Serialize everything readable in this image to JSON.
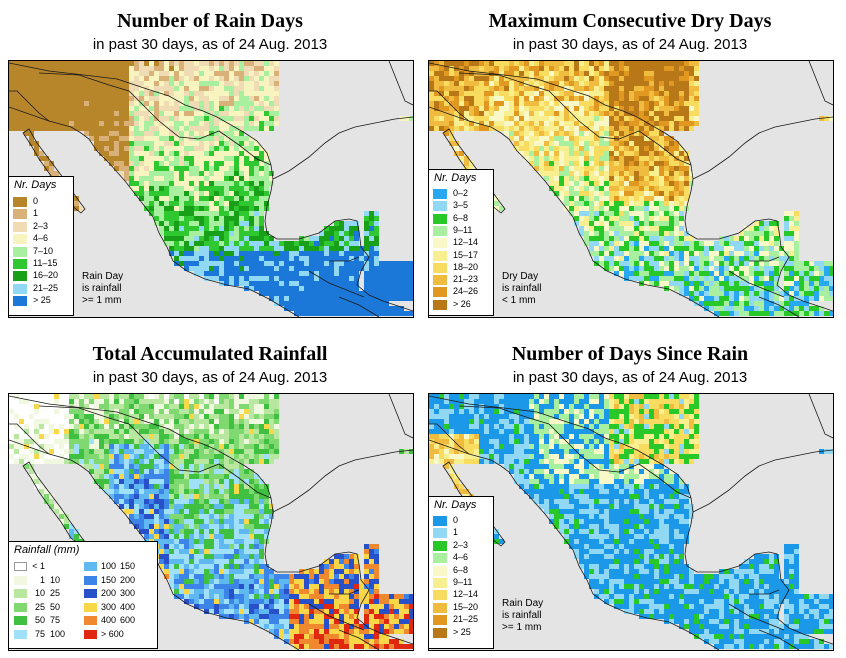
{
  "panels": [
    {
      "title": "Number of Rain Days",
      "subtitle": "in past 30 days, as of  24 Aug. 2013"
    },
    {
      "title": "Maximum Consecutive Dry Days",
      "subtitle": "in past 30 days, as of  24 Aug. 2013"
    },
    {
      "title": "Total Accumulated Rainfall",
      "subtitle": "in past 30 days, as of  24 Aug. 2013"
    },
    {
      "title": "Number of Days Since Rain",
      "subtitle": "in past 30 days, as of  24 Aug. 2013"
    }
  ],
  "legends": {
    "rain_days": {
      "title": "Nr. Days",
      "classes": [
        {
          "label": "0",
          "color": "#b8862a"
        },
        {
          "label": "1",
          "color": "#d8b078"
        },
        {
          "label": "2–3",
          "color": "#f0dcb4"
        },
        {
          "label": "4–6",
          "color": "#f8f4c0"
        },
        {
          "label": "7–10",
          "color": "#a8f0a0"
        },
        {
          "label": "11–15",
          "color": "#30c830"
        },
        {
          "label": "16–20",
          "color": "#18a018"
        },
        {
          "label": "21–25",
          "color": "#90d8f4"
        },
        {
          "label": "> 25",
          "color": "#1c78d8"
        }
      ],
      "note": [
        "Rain Day",
        "is rainfall",
        ">= 1 mm"
      ]
    },
    "dry_days": {
      "title": "Nr. Days",
      "classes": [
        {
          "label": "0–2",
          "color": "#28a8f0"
        },
        {
          "label": "3–5",
          "color": "#90d8f4"
        },
        {
          "label": "6–8",
          "color": "#28c828"
        },
        {
          "label": "9–11",
          "color": "#a8f0a0"
        },
        {
          "label": "12–14",
          "color": "#f8f8c8"
        },
        {
          "label": "15–17",
          "color": "#f8f090"
        },
        {
          "label": "18–20",
          "color": "#f8dc60"
        },
        {
          "label": "21–23",
          "color": "#f0bc40"
        },
        {
          "label": "24–26",
          "color": "#e09820"
        },
        {
          "label": "> 26",
          "color": "#b87818"
        }
      ],
      "note": [
        "Dry Day",
        "is rainfall",
        "< 1 mm"
      ]
    },
    "rainfall": {
      "title": "Rainfall (mm)",
      "classes": [
        {
          "from": "< 1",
          "to": "",
          "color": "#ffffff"
        },
        {
          "from": "1",
          "to": "10",
          "color": "#f0f8e0"
        },
        {
          "from": "10",
          "to": "25",
          "color": "#b8e8a0"
        },
        {
          "from": "25",
          "to": "50",
          "color": "#80d870"
        },
        {
          "from": "50",
          "to": "75",
          "color": "#40c040"
        },
        {
          "from": "75",
          "to": "100",
          "color": "#a0e0f8"
        },
        {
          "from": "100",
          "to": "150",
          "color": "#60b8f0"
        },
        {
          "from": "150",
          "to": "200",
          "color": "#3c84e8"
        },
        {
          "from": "200",
          "to": "300",
          "color": "#2850c8"
        },
        {
          "from": "300",
          "to": "400",
          "color": "#f8d848"
        },
        {
          "from": "400",
          "to": "600",
          "color": "#f08830"
        },
        {
          "from": "> 600",
          "to": "",
          "color": "#e02810"
        }
      ]
    },
    "days_since": {
      "title": "Nr. Days",
      "classes": [
        {
          "label": "0",
          "color": "#1c98e8"
        },
        {
          "label": "1",
          "color": "#90d8f4"
        },
        {
          "label": "2–3",
          "color": "#28c828"
        },
        {
          "label": "4–6",
          "color": "#a8f0a0"
        },
        {
          "label": "6–8",
          "color": "#f8f8c8"
        },
        {
          "label": "9–11",
          "color": "#f8f090"
        },
        {
          "label": "12–14",
          "color": "#f8dc60"
        },
        {
          "label": "15–20",
          "color": "#f0bc40"
        },
        {
          "label": "21–25",
          "color": "#e09820"
        },
        {
          "label": "> 25",
          "color": "#b87818"
        }
      ],
      "note": [
        "Rain Day",
        "is rainfall",
        ">= 1 mm"
      ]
    }
  }
}
